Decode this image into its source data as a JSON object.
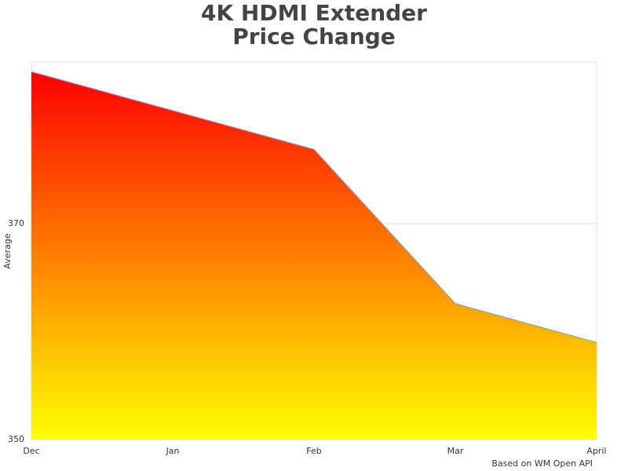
{
  "chart_data": {
    "type": "area",
    "title": [
      "4K HDMI Extender",
      "Price Change"
    ],
    "y_label": "Average",
    "credit": "Based on WM Open API",
    "categories": [
      "Dec",
      "Jan",
      "Feb",
      "Mar",
      "April"
    ],
    "values": [
      384.1,
      380.5,
      376.9,
      362.6,
      359.0
    ],
    "ylim": [
      350,
      385
    ],
    "yticks": [
      350,
      370
    ],
    "grid": true,
    "gradient": [
      "#ff0000",
      "#ffff00"
    ],
    "line_color": "#6fa8dc"
  }
}
